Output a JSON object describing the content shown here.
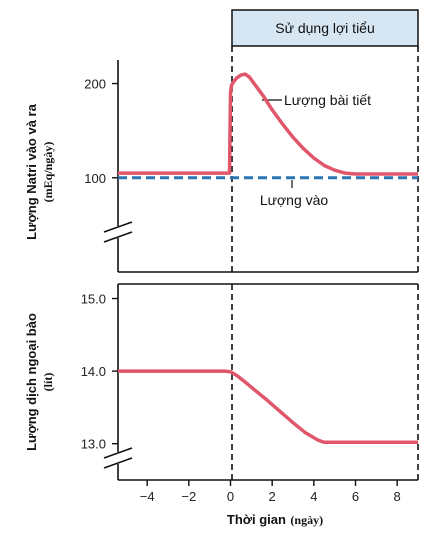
{
  "banner": {
    "label": "Sử dụng lợi tiểu",
    "color": "#d6e6f2"
  },
  "colors": {
    "output": "#e0566a",
    "intake": "#2b74b5",
    "axis": "#111111"
  },
  "chart_data": [
    {
      "type": "line",
      "ylabel": "Lượng Natri vào và ra",
      "yunit": "(mEq/ngày)",
      "ylim": [
        0,
        225
      ],
      "yticks": [
        100,
        200
      ],
      "xlim": [
        -5.4,
        9
      ],
      "axis_break": true,
      "series": [
        {
          "name": "Lượng bài tiết",
          "style": "solid",
          "x": [
            -5.4,
            -0.05,
            0,
            0.05,
            0.15,
            0.3,
            0.5,
            0.7,
            0.9,
            1.2,
            1.6,
            2.0,
            2.5,
            3.0,
            3.5,
            4.0,
            4.5,
            5.0,
            5.5,
            6.0,
            7.0,
            8.0,
            9.0
          ],
          "y": [
            105,
            105,
            190,
            198,
            202,
            206,
            209,
            210,
            207,
            198,
            186,
            172,
            157,
            143,
            131,
            121,
            113,
            108,
            105,
            104,
            104,
            104,
            104
          ]
        },
        {
          "name": "Lượng vào",
          "style": "dashed",
          "x": [
            -5.4,
            9
          ],
          "y": [
            100,
            100
          ]
        }
      ]
    },
    {
      "type": "line",
      "ylabel": "Lượng dịch ngoại bào",
      "yunit": "(lít)",
      "ylim": [
        12.5,
        15.2
      ],
      "yticks": [
        13.0,
        14.0,
        15.0
      ],
      "ytick_labels": [
        "13.0",
        "14.0",
        "15.0"
      ],
      "xlabel": "Thời gian",
      "xunit": "(ngày)",
      "xticks": [
        -4,
        -2,
        0,
        2,
        4,
        6,
        8
      ],
      "xtick_labels": [
        "−4",
        "−2",
        "0",
        "2",
        "4",
        "6",
        "8"
      ],
      "xlim": [
        -5.4,
        9
      ],
      "axis_break": true,
      "series": [
        {
          "style": "solid",
          "x": [
            -5.4,
            -0.3,
            0,
            0.3,
            0.7,
            1.2,
            1.8,
            2.4,
            3.0,
            3.6,
            4.2,
            4.5,
            5.0,
            6.0,
            7.0,
            8.0,
            9.0
          ],
          "y": [
            14.0,
            14.0,
            13.99,
            13.94,
            13.85,
            13.73,
            13.59,
            13.44,
            13.29,
            13.15,
            13.05,
            13.02,
            13.02,
            13.02,
            13.02,
            13.02,
            13.02
          ]
        }
      ]
    }
  ]
}
